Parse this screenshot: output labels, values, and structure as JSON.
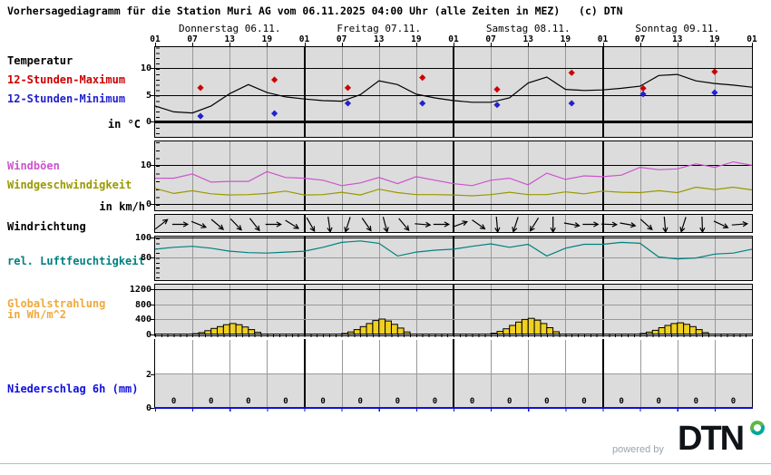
{
  "title": "Vorhersagediagramm für die Station Muri AG vom 06.11.2025 04:00 Uhr (alle Zeiten in MEZ)   (c) DTN",
  "labels": {
    "temperature": "Temperatur",
    "max12": "12-Stunden-Maximum",
    "min12": "12-Stunden-Minimum",
    "temp_unit": "in °C",
    "gusts": "Windböen",
    "wind_speed": "Windgeschwindigkeit",
    "wind_unit": "in km/h",
    "wind_dir": "Windrichtung",
    "humidity": "rel. Luftfeuchtigkeit",
    "radiation_1": "Globalstrahlung",
    "radiation_2": "in Wh/m^2",
    "precip": "Niederschlag 6h (mm)"
  },
  "axis": {
    "days": [
      "Donnerstag 06.11.",
      "Freitag 07.11.",
      "Samstag 08.11.",
      "Sonntag 09.11."
    ],
    "hours": [
      "01",
      "07",
      "13",
      "19",
      "01",
      "07",
      "13",
      "19",
      "01",
      "07",
      "13",
      "19",
      "01",
      "07",
      "13",
      "19",
      "01"
    ]
  },
  "colors": {
    "max": "#cc0000",
    "min": "#2222cc",
    "curve": "#000000",
    "gusts": "#cc55cc",
    "wind_speed": "#999900",
    "humidity": "#008080",
    "radiation_bar": "#f0d020",
    "precip_axis": "#0f0fe0",
    "panel_bg": "#dcdcdc",
    "grid_grey": "#999999"
  },
  "chart_data": {
    "x_unit": "hours, 01:00 Thu 06.11. to 01:00 Mon 10.11., step 3h",
    "x_step_h": 3,
    "temperature": {
      "type": "line",
      "unit": "°C",
      "ylim": [
        -3,
        14
      ],
      "yticks": [
        10,
        5,
        0
      ],
      "values": [
        2.9,
        1.8,
        1.6,
        2.9,
        5.2,
        6.9,
        5.4,
        4.6,
        4.2,
        3.9,
        3.8,
        5.0,
        7.6,
        6.9,
        5.1,
        4.4,
        3.9,
        3.6,
        3.6,
        4.4,
        7.2,
        8.3,
        6.0,
        5.8,
        5.9,
        6.2,
        6.6,
        8.6,
        8.8,
        7.6,
        7.1,
        6.8,
        6.4
      ],
      "marker_hours": [
        7.3,
        19.2,
        31,
        43,
        55,
        67,
        78.5,
        90
      ],
      "max_markers": [
        6.3,
        7.8,
        6.3,
        8.2,
        6.0,
        9.1,
        6.2,
        9.3
      ],
      "min_markers": [
        1.0,
        1.5,
        3.4,
        3.4,
        3.1,
        3.4,
        5.1,
        5.4
      ]
    },
    "wind": {
      "type": "line",
      "unit": "km/h",
      "ylim": [
        -2,
        16
      ],
      "yticks": [
        10,
        0
      ],
      "series": [
        {
          "name": "Windböen",
          "values": [
            6.6,
            6.6,
            7.7,
            5.6,
            5.8,
            5.8,
            8.3,
            6.8,
            6.6,
            6.1,
            4.7,
            5.4,
            6.8,
            5.2,
            7.0,
            6.1,
            5.2,
            4.7,
            6.1,
            6.6,
            4.9,
            7.9,
            6.3,
            7.2,
            7.0,
            7.4,
            9.4,
            8.8,
            9.0,
            10.3,
            9.4,
            10.8,
            9.9
          ]
        },
        {
          "name": "Windgeschwindigkeit",
          "values": [
            4.0,
            2.7,
            3.4,
            2.6,
            2.3,
            2.4,
            2.7,
            3.3,
            2.3,
            2.4,
            3.0,
            2.3,
            3.8,
            2.9,
            2.4,
            2.4,
            2.3,
            2.1,
            2.4,
            3.0,
            2.4,
            2.4,
            3.1,
            2.6,
            3.3,
            3.0,
            2.9,
            3.4,
            2.9,
            4.3,
            3.7,
            4.3,
            3.6
          ]
        }
      ]
    },
    "wind_direction": {
      "type": "arrows",
      "hours": [
        1,
        4,
        7,
        10,
        13,
        16,
        19,
        22,
        25,
        28,
        31,
        34,
        37,
        40,
        43,
        46,
        49,
        52,
        55,
        58,
        61,
        64,
        67,
        70,
        73,
        76,
        79,
        82,
        85,
        88,
        91,
        94
      ],
      "angles_deg_screen": [
        -38,
        0,
        22,
        40,
        46,
        52,
        0,
        32,
        60,
        82,
        108,
        55,
        75,
        50,
        5,
        0,
        -20,
        35,
        85,
        108,
        122,
        90,
        10,
        0,
        2,
        10,
        42,
        85,
        108,
        88,
        25,
        -5
      ]
    },
    "humidity": {
      "type": "line",
      "unit": "%",
      "ylim": [
        55,
        102
      ],
      "yticks": [
        100,
        80
      ],
      "values": [
        88,
        90,
        91,
        89,
        86,
        84.5,
        84,
        85,
        86,
        90,
        95,
        96.5,
        94,
        81,
        85,
        87,
        88,
        91,
        93.5,
        90,
        93,
        81,
        89,
        93,
        93,
        95,
        94,
        80,
        78,
        79,
        83,
        84,
        88
      ]
    },
    "radiation": {
      "type": "bar",
      "unit": "Wh/m^2",
      "ylim": [
        0,
        1345
      ],
      "yticks": [
        1200,
        800,
        400,
        0
      ],
      "bar_start_hour_local": 7,
      "days": [
        [
          10,
          40,
          90,
          150,
          200,
          250,
          280,
          250,
          190,
          120,
          45
        ],
        [
          15,
          55,
          120,
          200,
          280,
          360,
          400,
          350,
          260,
          160,
          55
        ],
        [
          20,
          70,
          140,
          230,
          320,
          390,
          420,
          370,
          280,
          170,
          60
        ],
        [
          15,
          50,
          100,
          170,
          230,
          280,
          300,
          260,
          200,
          120,
          40
        ]
      ]
    },
    "precipitation": {
      "type": "values",
      "unit": "mm/6h",
      "ylim": [
        0,
        4
      ],
      "yticks": [
        2,
        0
      ],
      "cell_values": [
        "0",
        "0",
        "0",
        "0",
        "0",
        "0",
        "0",
        "0",
        "0",
        "0",
        "0",
        "0",
        "0",
        "0",
        "0",
        "0"
      ]
    }
  },
  "footer": {
    "powered_by": "powered by",
    "brand": "DTN"
  }
}
